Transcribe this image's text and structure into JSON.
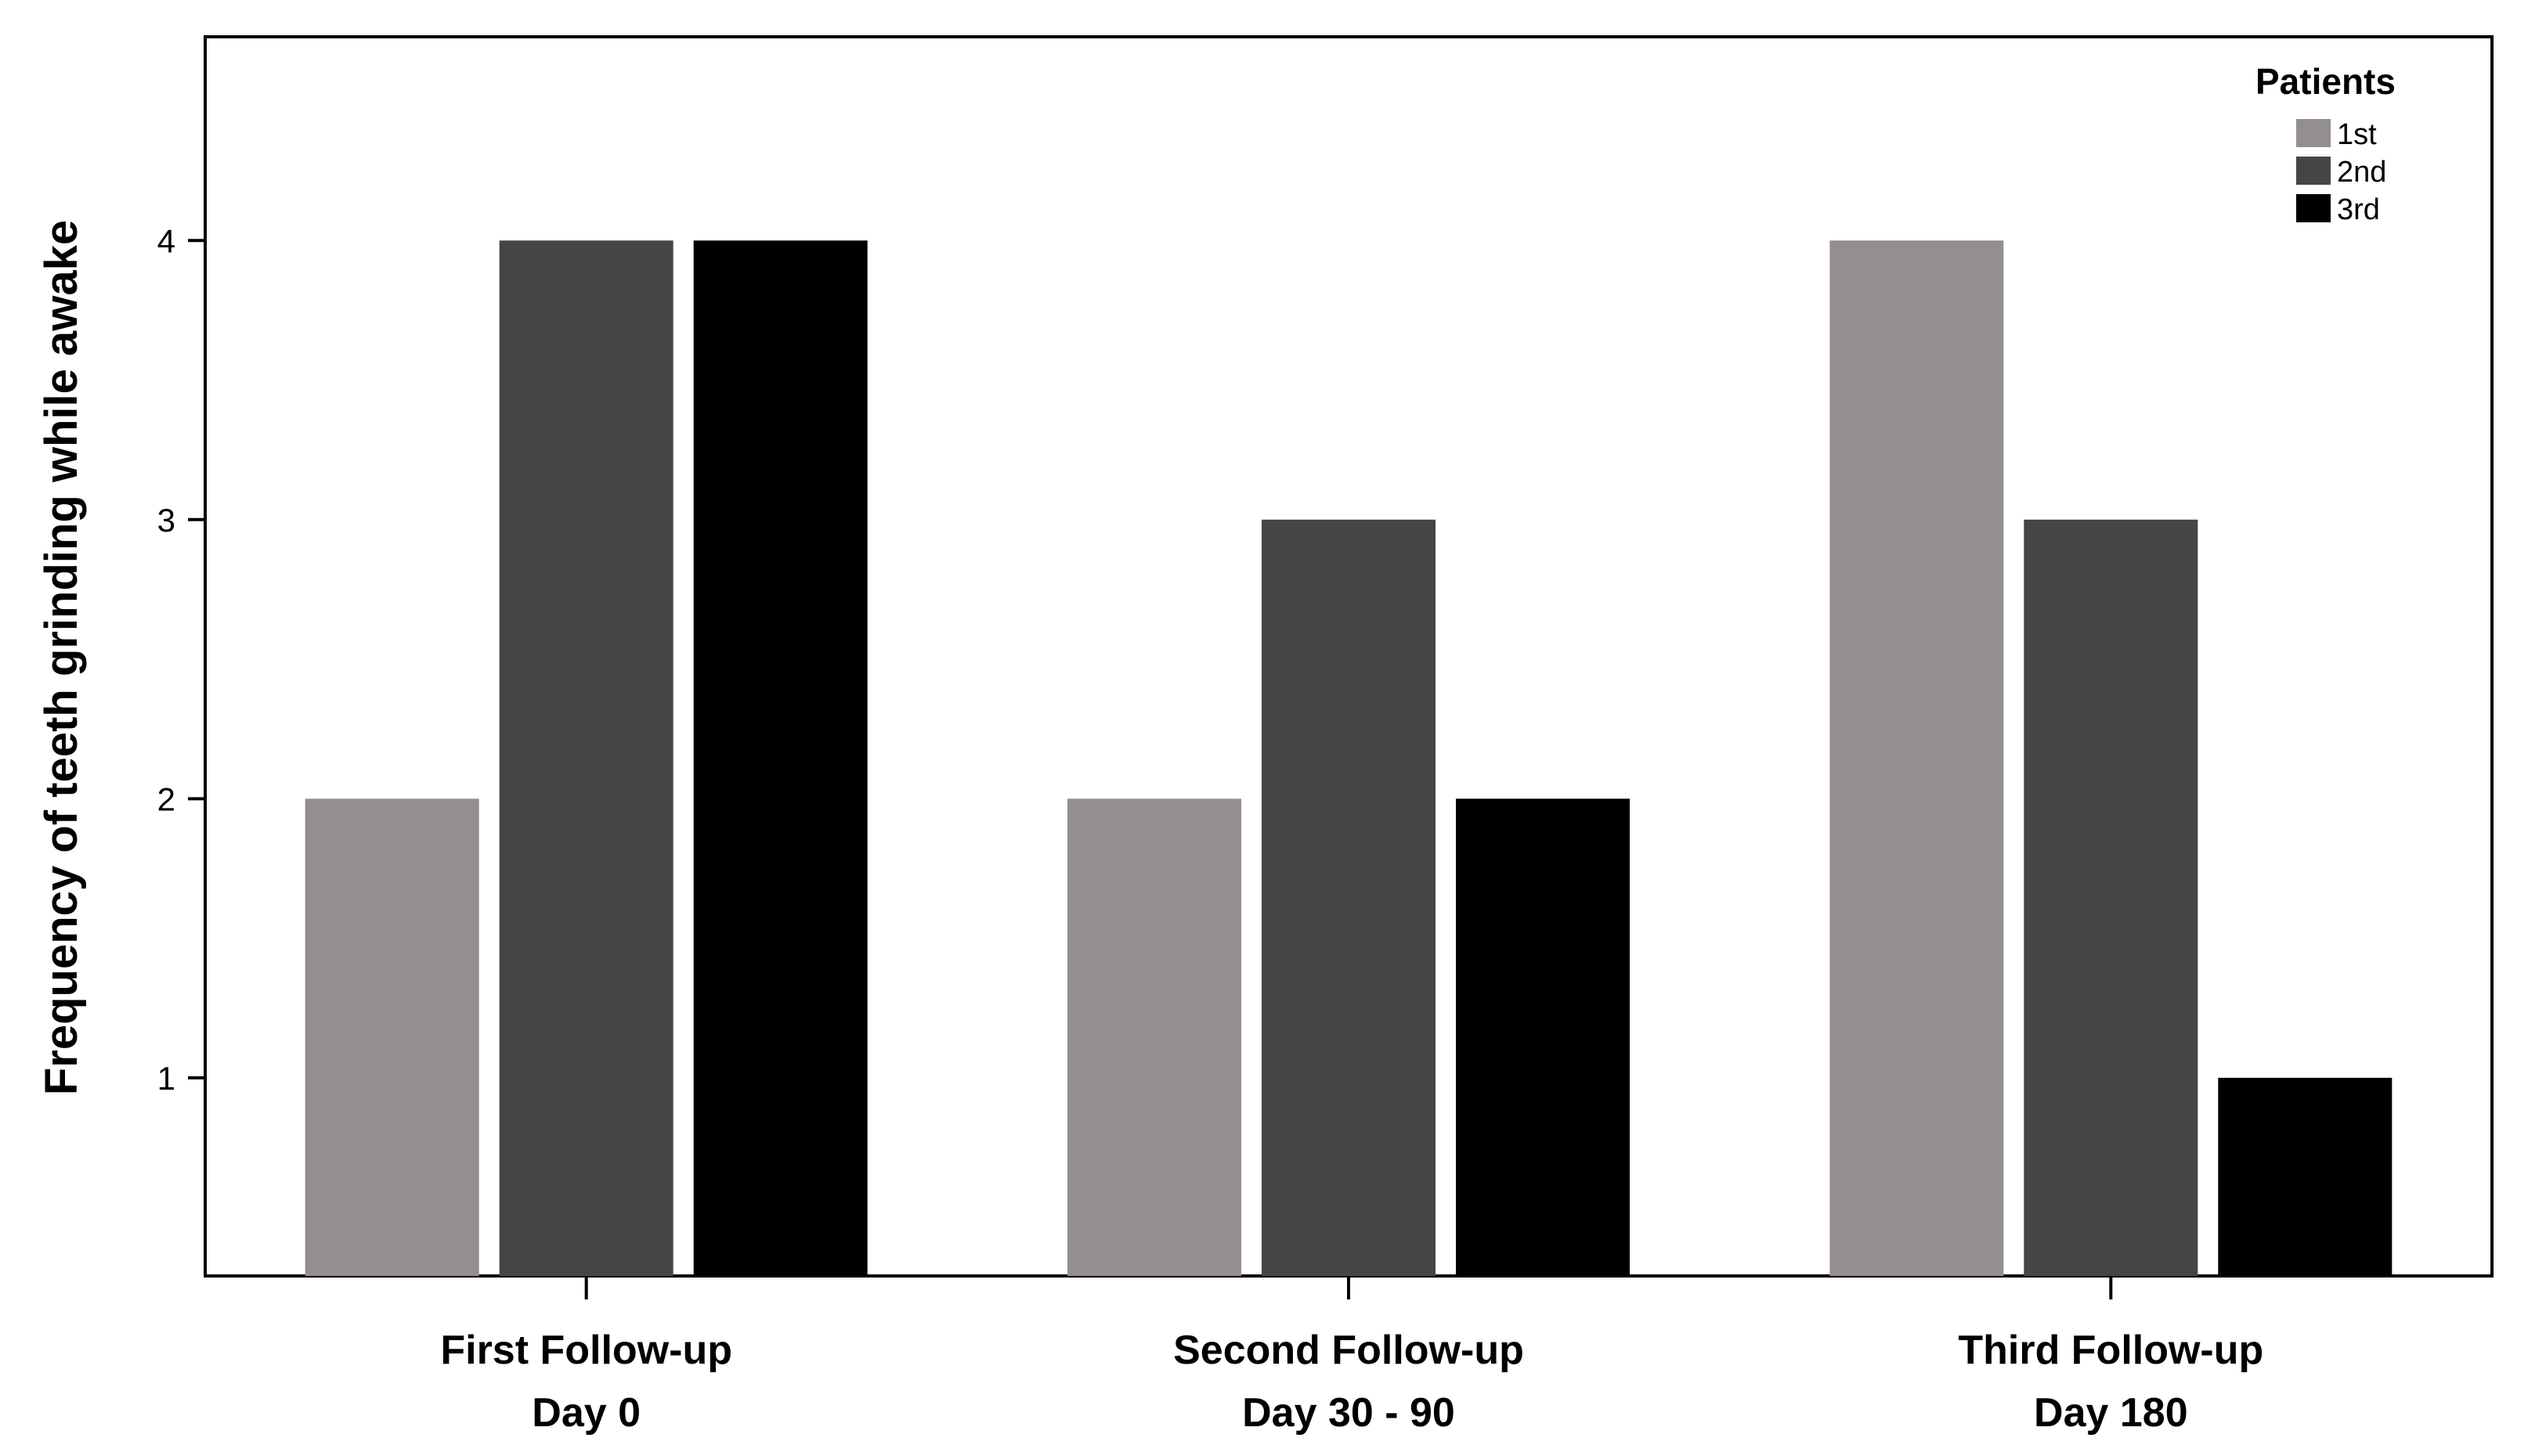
{
  "chart_data": {
    "type": "bar",
    "title": "",
    "xlabel": "",
    "ylabel": "Frequency of teeth grinding while awake",
    "categories": [
      [
        "First Follow-up",
        "Day 0"
      ],
      [
        "Second  Follow-up",
        "Day 30 - 90"
      ],
      [
        "Third  Follow-up",
        "Day 180"
      ]
    ],
    "series": [
      {
        "name": "1st",
        "values": [
          2,
          2,
          4
        ],
        "color": "#948e8e"
      },
      {
        "name": "2nd",
        "values": [
          4,
          3,
          3
        ],
        "color": "#454547"
      },
      {
        "name": "3rd",
        "values": [
          4,
          2,
          1
        ],
        "color": "#000000"
      }
    ],
    "yticks": [
      "1",
      "2",
      "3",
      "4"
    ],
    "ylim": [
      0.29,
      4.73
    ],
    "grid": false,
    "legend": {
      "title": "Patients",
      "position": "top-right"
    }
  }
}
